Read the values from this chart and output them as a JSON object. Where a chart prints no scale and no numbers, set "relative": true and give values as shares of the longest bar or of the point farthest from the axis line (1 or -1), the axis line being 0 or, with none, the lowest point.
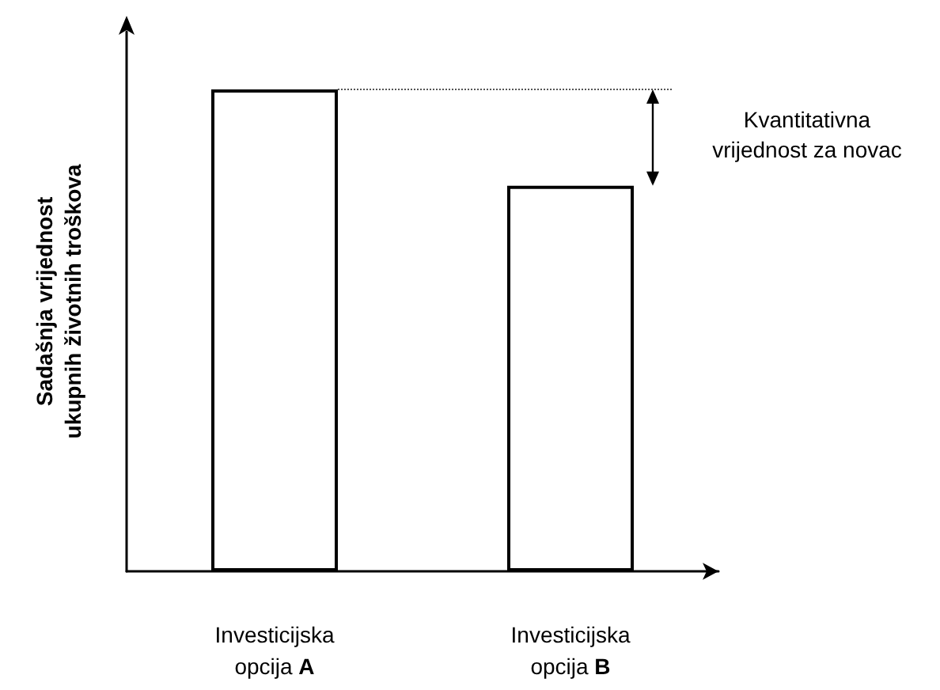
{
  "chart_data": {
    "type": "bar",
    "relative": true,
    "ylabel": "Sadašnja vrijednost\nukupnih životnih troškova",
    "categories": [
      "Investicijska opcija A",
      "Investicijska opcija B"
    ],
    "values": [
      1,
      0.8
    ],
    "color": "#ffffff",
    "grid": false,
    "ref_lines": [
      {
        "axis": "y",
        "value": 1,
        "label": null,
        "color": "#555555",
        "line_style": "dotted"
      }
    ],
    "annotations": [
      "Kvantitativna vrijednost za novac"
    ]
  }
}
